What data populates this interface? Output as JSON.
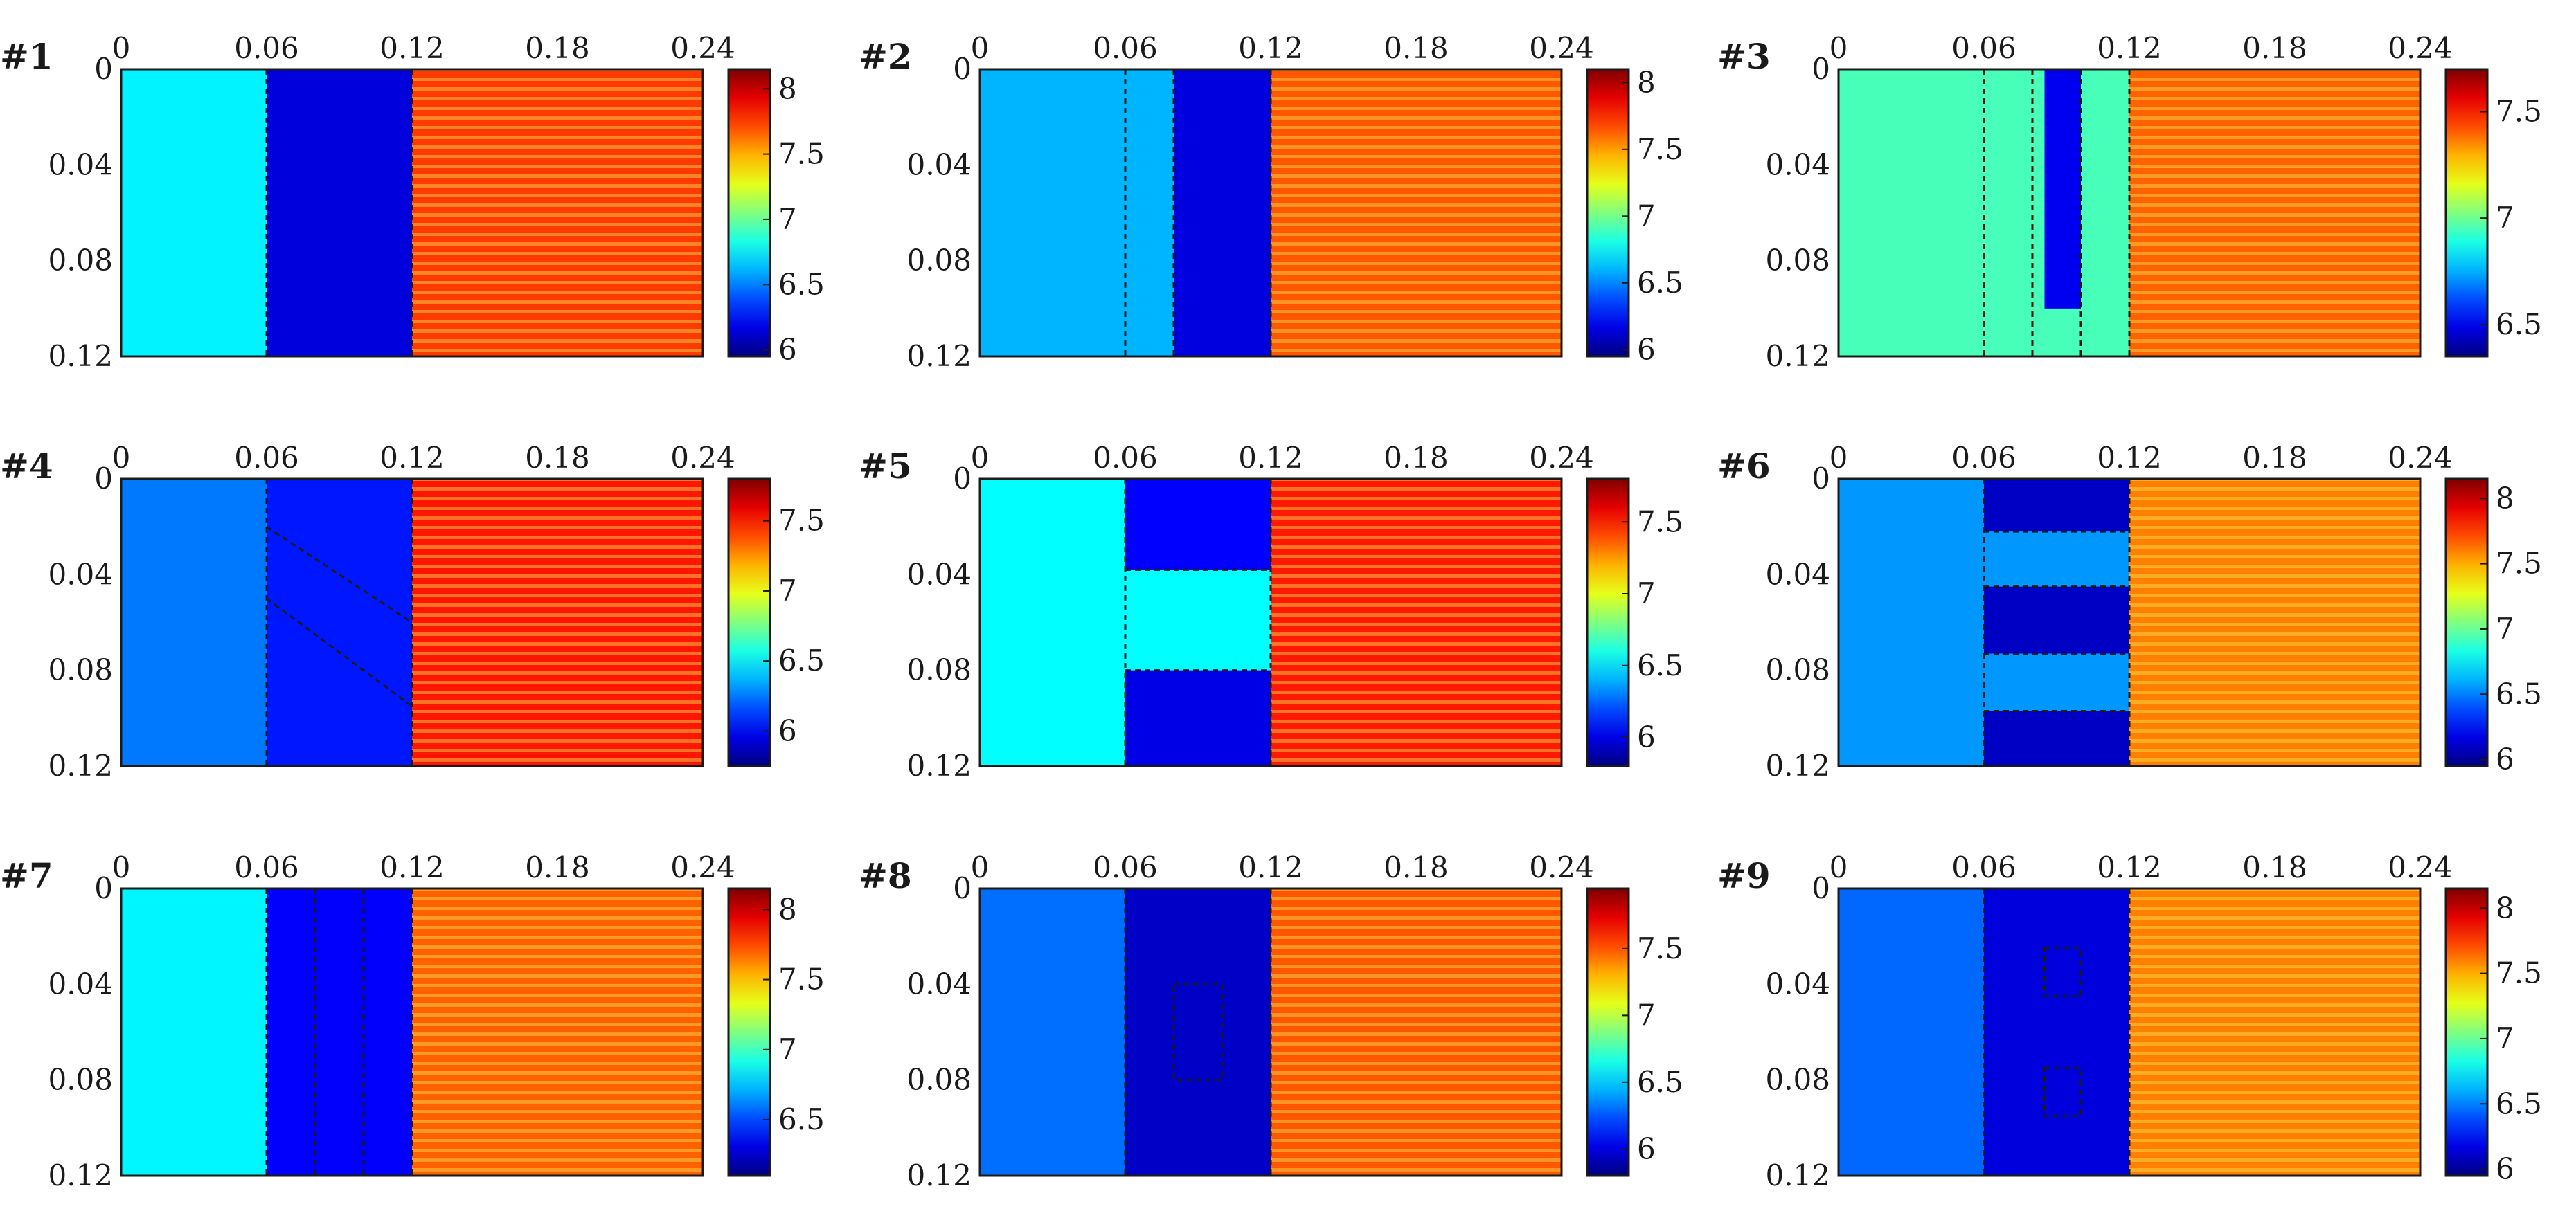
{
  "chart_data": [
    {
      "type": "heatmap",
      "panel_label": "#1",
      "xlim": [
        0,
        0.24
      ],
      "ylim": [
        0,
        0.12
      ],
      "x_ticks": [
        "0",
        "0.06",
        "0.12",
        "0.18",
        "0.24"
      ],
      "y_ticks": [
        "0",
        "0.04",
        "0.08",
        "0.12"
      ],
      "colorbar": {
        "range": [
          5.95,
          8.15
        ],
        "ticks": [
          "6",
          "6.5",
          "7",
          "7.5",
          "8"
        ],
        "tick_values": [
          6,
          6.5,
          7,
          7.5,
          8
        ]
      },
      "regions": [
        {
          "x": [
            0,
            0.06
          ],
          "y": [
            0,
            0.12
          ],
          "value": 6.75
        },
        {
          "x": [
            0.06,
            0.12
          ],
          "y": [
            0,
            0.12
          ],
          "value": 6.15
        },
        {
          "x": [
            0.12,
            0.24
          ],
          "y": [
            0,
            0.12
          ],
          "value": 7.75
        }
      ],
      "dashed_x": [
        0.06,
        0.12
      ],
      "dashed_y": [],
      "dashed_segments": []
    },
    {
      "type": "heatmap",
      "panel_label": "#2",
      "xlim": [
        0,
        0.24
      ],
      "ylim": [
        0,
        0.12
      ],
      "x_ticks": [
        "0",
        "0.06",
        "0.12",
        "0.18",
        "0.24"
      ],
      "y_ticks": [
        "0",
        "0.04",
        "0.08",
        "0.12"
      ],
      "colorbar": {
        "range": [
          5.95,
          8.1
        ],
        "ticks": [
          "6",
          "6.5",
          "7",
          "7.5",
          "8"
        ],
        "tick_values": [
          6,
          6.5,
          7,
          7.5,
          8
        ]
      },
      "regions": [
        {
          "x": [
            0,
            0.08
          ],
          "y": [
            0,
            0.12
          ],
          "value": 6.6
        },
        {
          "x": [
            0.08,
            0.12
          ],
          "y": [
            0,
            0.12
          ],
          "value": 6.15
        },
        {
          "x": [
            0.12,
            0.24
          ],
          "y": [
            0,
            0.12
          ],
          "value": 7.65
        }
      ],
      "dashed_x": [
        0.06,
        0.08,
        0.12
      ],
      "dashed_y": [],
      "dashed_segments": []
    },
    {
      "type": "heatmap",
      "panel_label": "#3",
      "xlim": [
        0,
        0.24
      ],
      "ylim": [
        0,
        0.12
      ],
      "x_ticks": [
        "0",
        "0.06",
        "0.12",
        "0.18",
        "0.24"
      ],
      "y_ticks": [
        "0",
        "0.04",
        "0.08",
        "0.12"
      ],
      "colorbar": {
        "range": [
          6.35,
          7.7
        ],
        "ticks": [
          "6.5",
          "7",
          "7.5"
        ],
        "tick_values": [
          6.5,
          7,
          7.5
        ]
      },
      "regions": [
        {
          "x": [
            0,
            0.12
          ],
          "y": [
            0,
            0.12
          ],
          "value": 6.95
        },
        {
          "x": [
            0.085,
            0.1
          ],
          "y": [
            0,
            0.1
          ],
          "value": 6.5
        },
        {
          "x": [
            0.12,
            0.24
          ],
          "y": [
            0,
            0.12
          ],
          "value": 7.4
        }
      ],
      "dashed_x": [
        0.06,
        0.08,
        0.1,
        0.12
      ],
      "dashed_y": [],
      "dashed_segments": []
    },
    {
      "type": "heatmap",
      "panel_label": "#4",
      "xlim": [
        0,
        0.24
      ],
      "ylim": [
        0,
        0.12
      ],
      "x_ticks": [
        "0",
        "0.06",
        "0.12",
        "0.18",
        "0.24"
      ],
      "y_ticks": [
        "0",
        "0.04",
        "0.08",
        "0.12"
      ],
      "colorbar": {
        "range": [
          5.75,
          7.8
        ],
        "ticks": [
          "6",
          "6.5",
          "7",
          "7.5"
        ],
        "tick_values": [
          6,
          6.5,
          7,
          7.5
        ]
      },
      "regions": [
        {
          "x": [
            0,
            0.12
          ],
          "y": [
            0,
            0.12
          ],
          "value": 6.25
        },
        {
          "x": [
            0.06,
            0.12
          ],
          "y": [
            0,
            0.12
          ],
          "value": 6.05
        },
        {
          "x": [
            0.12,
            0.24
          ],
          "y": [
            0,
            0.12
          ],
          "value": 7.5
        }
      ],
      "dashed_x": [
        0.06,
        0.12
      ],
      "dashed_y": [],
      "dashed_segments": [
        [
          0.06,
          0.02,
          0.12,
          0.06
        ],
        [
          0.06,
          0.05,
          0.12,
          0.095
        ]
      ]
    },
    {
      "type": "heatmap",
      "panel_label": "#5",
      "xlim": [
        0,
        0.24
      ],
      "ylim": [
        0,
        0.12
      ],
      "x_ticks": [
        "0",
        "0.06",
        "0.12",
        "0.18",
        "0.24"
      ],
      "y_ticks": [
        "0",
        "0.04",
        "0.08",
        "0.12"
      ],
      "colorbar": {
        "range": [
          5.8,
          7.8
        ],
        "ticks": [
          "6",
          "6.5",
          "7",
          "7.5"
        ],
        "tick_values": [
          6,
          6.5,
          7,
          7.5
        ]
      },
      "regions": [
        {
          "x": [
            0,
            0.12
          ],
          "y": [
            0,
            0.12
          ],
          "value": 6.55
        },
        {
          "x": [
            0.06,
            0.12
          ],
          "y": [
            0,
            0.038
          ],
          "value": 6.05
        },
        {
          "x": [
            0.06,
            0.12
          ],
          "y": [
            0.08,
            0.12
          ],
          "value": 6.0
        },
        {
          "x": [
            0.12,
            0.24
          ],
          "y": [
            0,
            0.12
          ],
          "value": 7.5
        }
      ],
      "dashed_x": [
        0.06,
        0.12
      ],
      "dashed_y": [
        [
          0.038,
          0.06,
          0.12
        ],
        [
          0.08,
          0.06,
          0.12
        ]
      ],
      "dashed_segments": []
    },
    {
      "type": "heatmap",
      "panel_label": "#6",
      "xlim": [
        0,
        0.24
      ],
      "ylim": [
        0,
        0.12
      ],
      "x_ticks": [
        "0",
        "0.06",
        "0.12",
        "0.18",
        "0.24"
      ],
      "y_ticks": [
        "0",
        "0.04",
        "0.08",
        "0.12"
      ],
      "colorbar": {
        "range": [
          5.95,
          8.15
        ],
        "ticks": [
          "6",
          "6.5",
          "7",
          "7.5",
          "8"
        ],
        "tick_values": [
          6,
          6.5,
          7,
          7.5,
          8
        ]
      },
      "regions": [
        {
          "x": [
            0,
            0.12
          ],
          "y": [
            0,
            0.12
          ],
          "value": 6.55
        },
        {
          "x": [
            0.06,
            0.12
          ],
          "y": [
            0,
            0.022
          ],
          "value": 6.1
        },
        {
          "x": [
            0.06,
            0.12
          ],
          "y": [
            0.045,
            0.073
          ],
          "value": 6.1
        },
        {
          "x": [
            0.06,
            0.12
          ],
          "y": [
            0.097,
            0.12
          ],
          "value": 6.1
        },
        {
          "x": [
            0.12,
            0.24
          ],
          "y": [
            0,
            0.12
          ],
          "value": 7.6
        }
      ],
      "dashed_x": [
        0.06,
        0.12
      ],
      "dashed_y": [
        [
          0.022,
          0.06,
          0.12
        ],
        [
          0.045,
          0.06,
          0.12
        ],
        [
          0.073,
          0.06,
          0.12
        ],
        [
          0.097,
          0.06,
          0.12
        ]
      ],
      "dashed_segments": []
    },
    {
      "type": "heatmap",
      "panel_label": "#7",
      "xlim": [
        0,
        0.24
      ],
      "ylim": [
        0,
        0.12
      ],
      "x_ticks": [
        "0",
        "0.06",
        "0.12",
        "0.18",
        "0.24"
      ],
      "y_ticks": [
        "0",
        "0.04",
        "0.08",
        "0.12"
      ],
      "colorbar": {
        "range": [
          6.1,
          8.15
        ],
        "ticks": [
          "6.5",
          "7",
          "7.5",
          "8"
        ],
        "tick_values": [
          6.5,
          7,
          7.5,
          8
        ]
      },
      "regions": [
        {
          "x": [
            0,
            0.06
          ],
          "y": [
            0,
            0.12
          ],
          "value": 6.85
        },
        {
          "x": [
            0.06,
            0.12
          ],
          "y": [
            0,
            0.12
          ],
          "value": 6.35
        },
        {
          "x": [
            0.12,
            0.24
          ],
          "y": [
            0,
            0.12
          ],
          "value": 7.7
        }
      ],
      "dashed_x": [
        0.06,
        0.08,
        0.1,
        0.12
      ],
      "dashed_y": [],
      "dashed_segments": []
    },
    {
      "type": "heatmap",
      "panel_label": "#8",
      "xlim": [
        0,
        0.24
      ],
      "ylim": [
        0,
        0.12
      ],
      "x_ticks": [
        "0",
        "0.06",
        "0.12",
        "0.18",
        "0.24"
      ],
      "y_ticks": [
        "0",
        "0.04",
        "0.08",
        "0.12"
      ],
      "colorbar": {
        "range": [
          5.8,
          7.95
        ],
        "ticks": [
          "6",
          "6.5",
          "7",
          "7.5"
        ],
        "tick_values": [
          6,
          6.5,
          7,
          7.5
        ]
      },
      "regions": [
        {
          "x": [
            0,
            0.06
          ],
          "y": [
            0,
            0.12
          ],
          "value": 6.3
        },
        {
          "x": [
            0.06,
            0.12
          ],
          "y": [
            0,
            0.12
          ],
          "value": 5.95
        },
        {
          "x": [
            0.12,
            0.24
          ],
          "y": [
            0,
            0.12
          ],
          "value": 7.5
        }
      ],
      "dashed_x": [
        0.06,
        0.12
      ],
      "dashed_y": [],
      "dashed_segments": [],
      "dashed_boxes": [
        [
          0.08,
          0.04,
          0.1,
          0.08
        ]
      ]
    },
    {
      "type": "heatmap",
      "panel_label": "#9",
      "xlim": [
        0,
        0.24
      ],
      "ylim": [
        0,
        0.12
      ],
      "x_ticks": [
        "0",
        "0.06",
        "0.12",
        "0.18",
        "0.24"
      ],
      "y_ticks": [
        "0",
        "0.04",
        "0.08",
        "0.12"
      ],
      "colorbar": {
        "range": [
          5.95,
          8.15
        ],
        "ticks": [
          "6",
          "6.5",
          "7",
          "7.5",
          "8"
        ],
        "tick_values": [
          6,
          6.5,
          7,
          7.5,
          8
        ]
      },
      "regions": [
        {
          "x": [
            0,
            0.06
          ],
          "y": [
            0,
            0.12
          ],
          "value": 6.45
        },
        {
          "x": [
            0.06,
            0.12
          ],
          "y": [
            0,
            0.12
          ],
          "value": 6.15
        },
        {
          "x": [
            0.12,
            0.24
          ],
          "y": [
            0,
            0.12
          ],
          "value": 7.6
        }
      ],
      "dashed_x": [
        0.06,
        0.12
      ],
      "dashed_y": [],
      "dashed_segments": [],
      "dashed_boxes": [
        [
          0.085,
          0.025,
          0.1,
          0.045
        ],
        [
          0.085,
          0.075,
          0.1,
          0.095
        ]
      ]
    }
  ]
}
